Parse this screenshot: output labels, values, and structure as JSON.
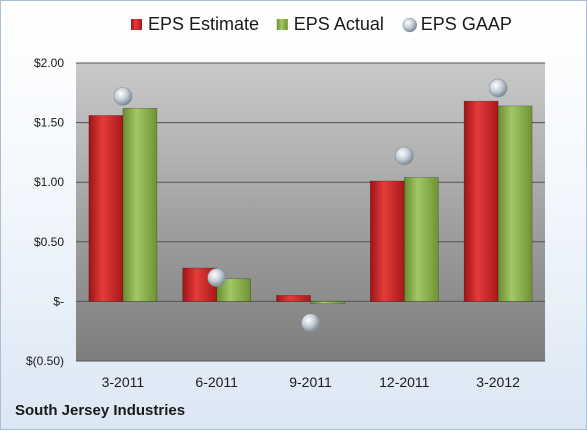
{
  "company": "South Jersey Industries",
  "chart_data": {
    "type": "bar",
    "title": "",
    "xlabel": "",
    "ylabel": "",
    "categories": [
      "3-2011",
      "6-2011",
      "9-2011",
      "12-2011",
      "3-2012"
    ],
    "series": [
      {
        "name": "EPS Estimate",
        "kind": "bar",
        "color": "#d42a2a",
        "values": [
          1.56,
          0.28,
          0.05,
          1.01,
          1.68
        ]
      },
      {
        "name": "EPS Actual",
        "kind": "bar",
        "color": "#8ab04a",
        "values": [
          1.62,
          0.19,
          -0.02,
          1.04,
          1.64
        ]
      },
      {
        "name": "EPS GAAP",
        "kind": "marker",
        "color": "#b8c2cc",
        "values": [
          1.72,
          0.2,
          -0.18,
          1.22,
          1.79
        ]
      }
    ],
    "ylim": [
      -0.5,
      2.0
    ],
    "yticks": [
      2.0,
      1.5,
      1.0,
      0.5,
      0,
      -0.5
    ],
    "ytick_labels": [
      "$2.00",
      "$1.50",
      "$1.00",
      "$0.50",
      "$-",
      "$(0.50)"
    ],
    "grid": true,
    "legend_position": "top"
  }
}
